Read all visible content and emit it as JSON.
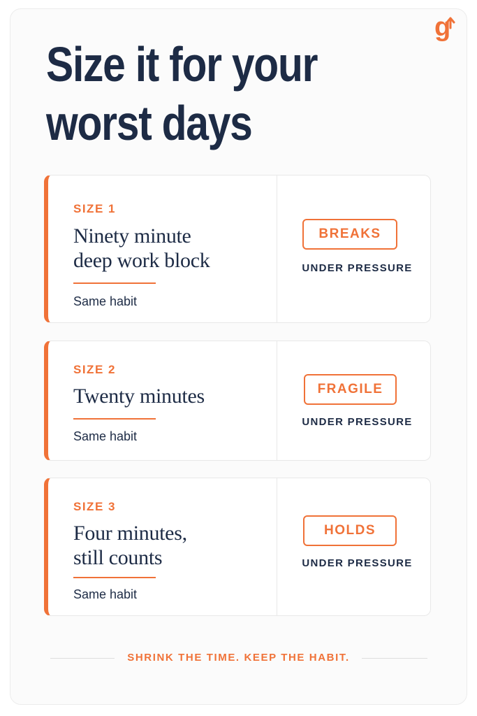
{
  "brand": {
    "logo_text": "g",
    "accent_color": "#f07238",
    "text_color": "#1d2b45"
  },
  "title": {
    "line1": "Size it for your",
    "line2": "worst days"
  },
  "cards": [
    {
      "size_label": "SIZE 1",
      "heading_line1": "Ninety minute",
      "heading_line2": "deep work block",
      "subtext": "Same habit",
      "badge": "BREAKS",
      "badge_caption": "UNDER PRESSURE"
    },
    {
      "size_label": "SIZE 2",
      "heading_line1": "Twenty minutes",
      "heading_line2": "",
      "subtext": "Same habit",
      "badge": "FRAGILE",
      "badge_caption": "UNDER PRESSURE"
    },
    {
      "size_label": "SIZE 3",
      "heading_line1": "Four minutes,",
      "heading_line2": "still counts",
      "subtext": "Same habit",
      "badge": "HOLDS",
      "badge_caption": "UNDER PRESSURE"
    }
  ],
  "footer": {
    "tagline": "SHRINK THE TIME. KEEP THE HABIT."
  }
}
